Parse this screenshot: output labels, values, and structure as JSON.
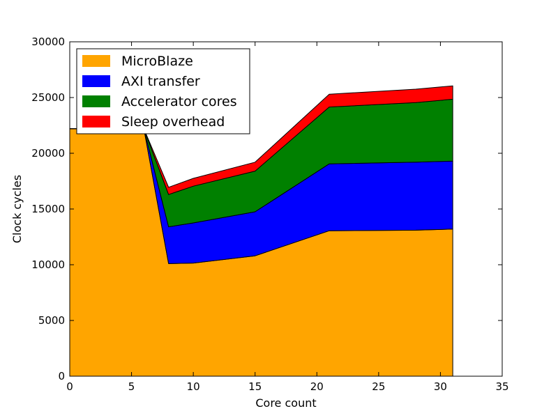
{
  "chart_data": {
    "type": "area",
    "stacked": true,
    "title": "",
    "xlabel": "Core count",
    "ylabel": "Clock cycles",
    "xlim": [
      0,
      35
    ],
    "ylim": [
      0,
      30000
    ],
    "xticks": [
      "0",
      "5",
      "10",
      "15",
      "20",
      "25",
      "30",
      "35"
    ],
    "yticks": [
      "0",
      "5000",
      "10000",
      "15000",
      "20000",
      "25000",
      "30000"
    ],
    "grid": false,
    "legend": "upper-left",
    "x": [
      0,
      6,
      8,
      10,
      15,
      21,
      28,
      31
    ],
    "series": [
      {
        "name": "MicroBlaze",
        "color": "#FFA500",
        "values": [
          22200,
          22200,
          10100,
          10150,
          10800,
          13050,
          13100,
          13200
        ]
      },
      {
        "name": "AXI transfer",
        "color": "#0000FF",
        "values": [
          0,
          0,
          3300,
          3600,
          3950,
          6000,
          6100,
          6100
        ]
      },
      {
        "name": "Accelerator cores",
        "color": "#008000",
        "values": [
          0,
          0,
          2900,
          3300,
          3650,
          5100,
          5350,
          5550
        ]
      },
      {
        "name": "Sleep overhead",
        "color": "#FF0000",
        "values": [
          0,
          0,
          650,
          700,
          800,
          1150,
          1200,
          1200
        ]
      }
    ]
  }
}
